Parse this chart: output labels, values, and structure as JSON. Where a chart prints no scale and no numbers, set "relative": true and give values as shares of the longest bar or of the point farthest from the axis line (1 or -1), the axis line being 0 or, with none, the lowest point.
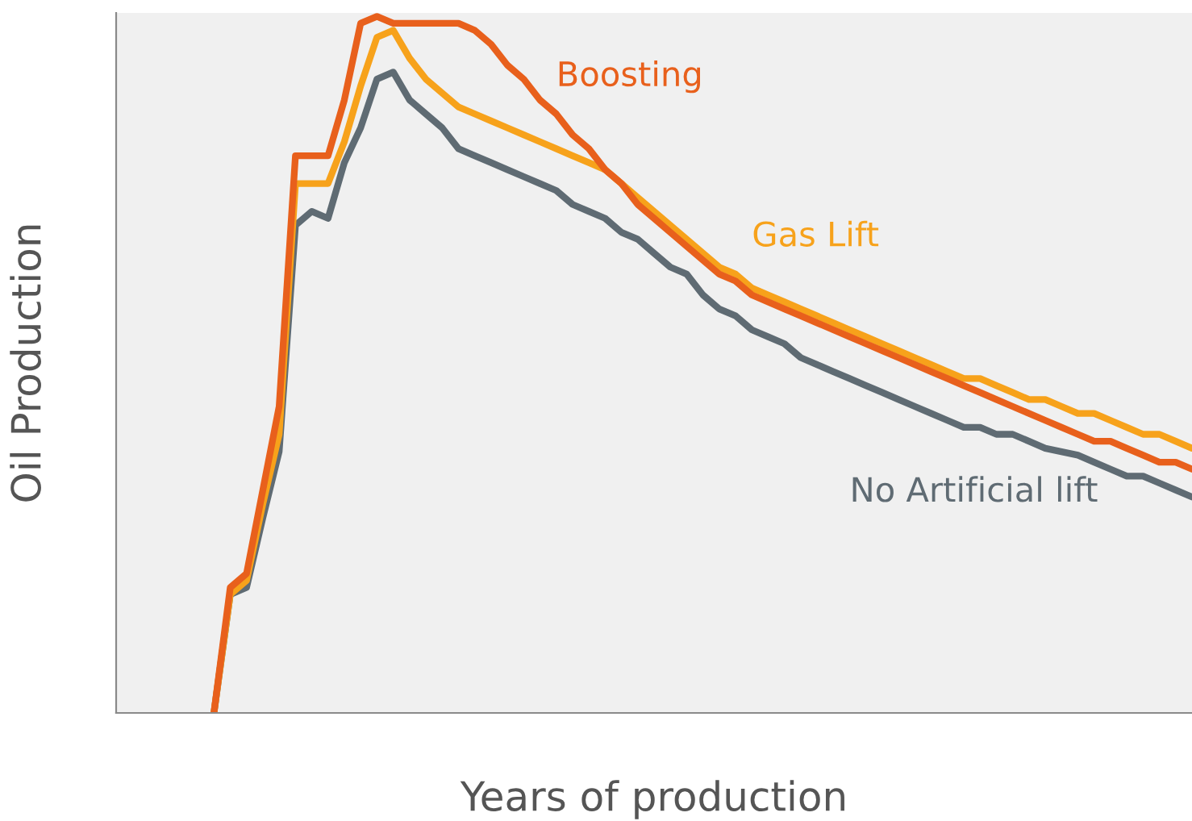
{
  "chart_data": {
    "type": "line",
    "relative": true,
    "xlabel": "Years of production",
    "ylabel": "Oil Production",
    "legend": false,
    "marker": "none",
    "line_style": "solid",
    "categories": [
      null,
      null,
      null,
      null,
      null,
      null,
      null,
      null,
      null,
      null,
      null,
      null,
      null,
      null,
      null,
      null,
      null,
      null,
      null,
      null,
      null,
      null,
      null,
      null,
      null,
      null,
      null,
      null,
      null,
      null,
      null,
      null,
      null,
      null,
      null,
      null,
      null,
      null,
      null,
      null,
      null,
      null,
      null,
      null,
      null,
      null,
      null,
      null,
      null,
      null,
      null,
      null,
      null,
      null,
      null,
      null,
      null,
      null,
      null,
      null,
      null,
      null,
      null,
      null,
      null,
      null,
      null
    ],
    "series": [
      {
        "name": "No Artificial lift",
        "color": "#5f6b73",
        "values": [
          null,
          null,
          null,
          null,
          null,
          null,
          0,
          0.17,
          0.18,
          0.28,
          0.375,
          0.7,
          0.72,
          0.71,
          0.79,
          0.84,
          0.91,
          0.92,
          0.88,
          0.86,
          0.84,
          0.81,
          0.8,
          0.79,
          0.78,
          0.77,
          0.76,
          0.75,
          0.73,
          0.72,
          0.71,
          0.69,
          0.68,
          0.66,
          0.64,
          0.63,
          0.6,
          0.58,
          0.57,
          0.55,
          0.54,
          0.53,
          0.51,
          0.5,
          0.49,
          0.48,
          0.47,
          0.46,
          0.45,
          0.44,
          0.43,
          0.42,
          0.41,
          0.41,
          0.4,
          0.4,
          0.39,
          0.38,
          0.375,
          0.37,
          0.36,
          0.35,
          0.34,
          0.34,
          0.33,
          0.32,
          0.31
        ]
      },
      {
        "name": "Gas Lift",
        "color": "#f7a21b",
        "values": [
          null,
          null,
          null,
          null,
          null,
          null,
          0,
          0.17,
          0.19,
          0.3,
          0.4,
          0.76,
          0.76,
          0.76,
          0.82,
          0.9,
          0.97,
          0.98,
          0.94,
          0.91,
          0.89,
          0.87,
          0.86,
          0.85,
          0.84,
          0.83,
          0.82,
          0.81,
          0.8,
          0.79,
          0.78,
          0.76,
          0.74,
          0.72,
          0.7,
          0.68,
          0.66,
          0.64,
          0.63,
          0.61,
          0.6,
          0.59,
          0.58,
          0.57,
          0.56,
          0.55,
          0.54,
          0.53,
          0.52,
          0.51,
          0.5,
          0.49,
          0.48,
          0.48,
          0.47,
          0.46,
          0.45,
          0.45,
          0.44,
          0.43,
          0.43,
          0.42,
          0.41,
          0.4,
          0.4,
          0.39,
          0.38
        ]
      },
      {
        "name": "Boosting",
        "color": "#e8601c",
        "values": [
          null,
          null,
          null,
          null,
          null,
          null,
          0,
          0.18,
          0.2,
          0.32,
          0.44,
          0.8,
          0.8,
          0.8,
          0.88,
          0.99,
          1.0,
          0.99,
          0.99,
          0.99,
          0.99,
          0.99,
          0.98,
          0.96,
          0.93,
          0.91,
          0.88,
          0.86,
          0.83,
          0.81,
          0.78,
          0.76,
          0.73,
          0.71,
          0.69,
          0.67,
          0.65,
          0.63,
          0.62,
          0.6,
          0.59,
          0.58,
          0.57,
          0.56,
          0.55,
          0.54,
          0.53,
          0.52,
          0.51,
          0.5,
          0.49,
          0.48,
          0.47,
          0.46,
          0.45,
          0.44,
          0.43,
          0.42,
          0.41,
          0.4,
          0.39,
          0.39,
          0.38,
          0.37,
          0.36,
          0.36,
          0.35
        ]
      }
    ]
  }
}
